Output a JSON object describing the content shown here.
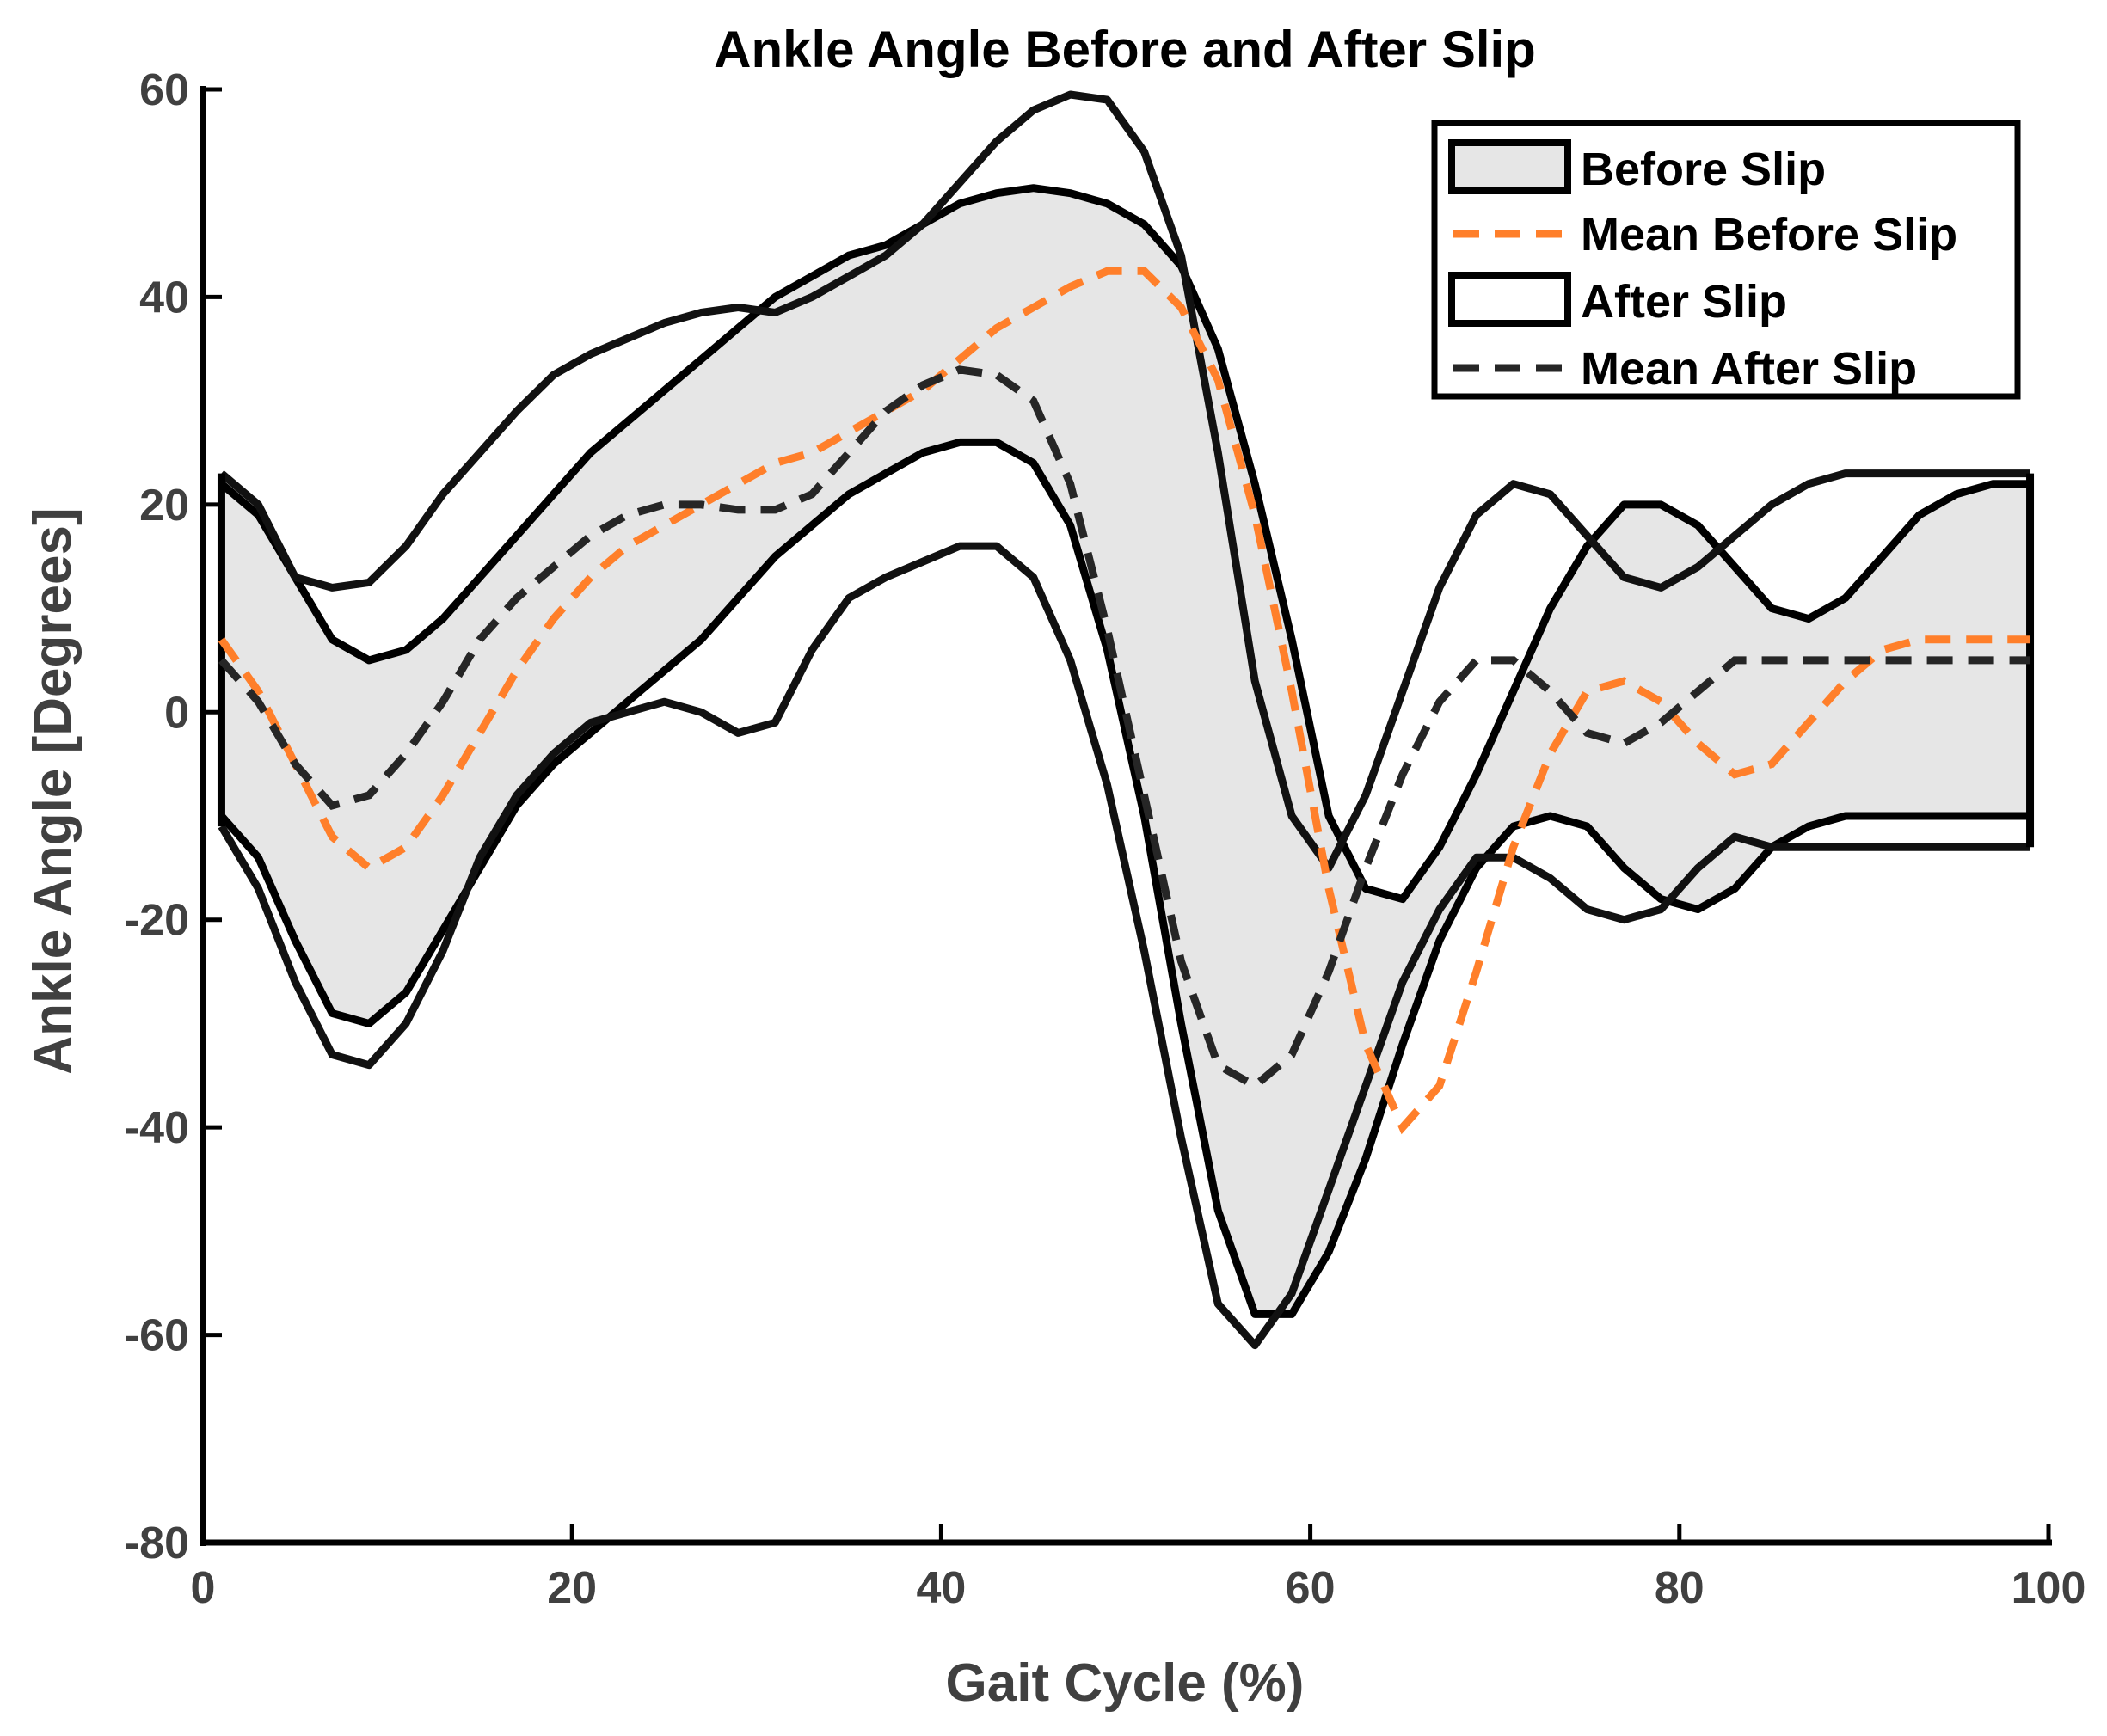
{
  "chart_data": {
    "type": "line",
    "title": "Ankle Angle Before and After Slip",
    "xlabel": "Gait Cycle (%)",
    "ylabel": "Ankle Angle [Degrees]",
    "xlim": [
      0,
      100
    ],
    "ylim": [
      -80,
      60
    ],
    "xticks": [
      0,
      20,
      40,
      60,
      80,
      100
    ],
    "yticks": [
      -80,
      -60,
      -40,
      -20,
      0,
      20,
      40,
      60
    ],
    "grid": false,
    "legend_position": "top-right",
    "legend": [
      {
        "label": "Before Slip",
        "type": "band",
        "fill": "#e6e6e6"
      },
      {
        "label": "Mean Before Slip",
        "type": "dashed",
        "color": "#ff7f2a"
      },
      {
        "label": "After Slip",
        "type": "band",
        "fill": "#ffffff"
      },
      {
        "label": "Mean After Slip",
        "type": "dashed",
        "color": "#262626"
      }
    ],
    "x": [
      1,
      3,
      5,
      7,
      9,
      11,
      13,
      15,
      17,
      19,
      21,
      23,
      25,
      27,
      29,
      31,
      33,
      35,
      37,
      39,
      41,
      43,
      45,
      47,
      49,
      51,
      53,
      55,
      57,
      59,
      61,
      63,
      65,
      67,
      69,
      71,
      73,
      75,
      77,
      79,
      81,
      83,
      85,
      87,
      89,
      91,
      93,
      95,
      97,
      99
    ],
    "series": [
      {
        "name": "Before Slip",
        "role": "band",
        "upper": [
          22,
          19,
          13,
          7,
          5,
          6,
          9,
          13,
          17,
          21,
          25,
          28,
          31,
          34,
          37,
          40,
          42,
          44,
          45,
          47,
          49,
          50,
          50.5,
          50,
          49,
          47,
          43,
          35,
          22,
          7,
          -10,
          -17,
          -18,
          -13,
          -6,
          2,
          10,
          16,
          20,
          20,
          18,
          14,
          10,
          9,
          11,
          15,
          19,
          21,
          22,
          22
        ],
        "lower": [
          -10,
          -14,
          -22,
          -29,
          -30,
          -27,
          -21,
          -15,
          -9,
          -5,
          -2,
          1,
          4,
          7,
          11,
          15,
          18,
          21,
          23,
          25,
          26,
          26,
          24,
          18,
          6,
          -10,
          -30,
          -48,
          -58,
          -58,
          -52,
          -43,
          -32,
          -22,
          -15,
          -11,
          -10,
          -11,
          -15,
          -18,
          -19,
          -17,
          -13,
          -11,
          -10,
          -10,
          -10,
          -10,
          -10,
          -10
        ]
      },
      {
        "name": "Mean Before Slip",
        "role": "mean",
        "values": [
          7,
          2,
          -5,
          -12,
          -15,
          -13,
          -8,
          -2,
          4,
          9,
          13,
          16,
          18,
          20,
          22,
          24,
          25,
          27,
          29,
          31,
          34,
          37,
          39,
          41,
          42.5,
          42.5,
          39,
          32,
          19,
          2,
          -17,
          -32,
          -40,
          -36,
          -25,
          -13,
          -4,
          2,
          3,
          1,
          -3,
          -6,
          -5,
          -1,
          3,
          6,
          7,
          7,
          7,
          7
        ]
      },
      {
        "name": "After Slip",
        "role": "band",
        "upper": [
          23,
          20,
          13,
          12,
          12.5,
          16,
          21,
          25,
          29,
          32.5,
          34.5,
          36,
          37.5,
          38.5,
          39,
          38.5,
          40,
          42,
          44,
          47,
          51,
          55,
          58,
          59.5,
          59,
          54,
          44,
          25,
          3,
          -10,
          -15,
          -8,
          2,
          12,
          19,
          22,
          21,
          17,
          13,
          12,
          14,
          17,
          20,
          22,
          23,
          23,
          23,
          23,
          23,
          23
        ],
        "lower": [
          -11,
          -17,
          -26,
          -33,
          -34,
          -30,
          -23,
          -14,
          -8,
          -4,
          -1,
          0,
          1,
          0,
          -2,
          -1,
          6,
          11,
          13,
          14.5,
          16,
          16,
          13,
          5,
          -7,
          -23,
          -41,
          -57,
          -61,
          -56,
          -46,
          -36,
          -26,
          -19,
          -14,
          -14,
          -16,
          -19,
          -20,
          -19,
          -15,
          -12,
          -13,
          -13,
          -13,
          -13,
          -13,
          -13,
          -13,
          -13
        ]
      },
      {
        "name": "Mean After Slip",
        "role": "mean",
        "values": [
          5,
          1,
          -5,
          -9,
          -8,
          -4,
          1,
          7,
          11,
          14,
          17,
          19,
          20,
          20,
          19.5,
          19.5,
          21,
          25,
          29,
          31.5,
          33,
          32.5,
          30,
          22,
          8,
          -8,
          -24,
          -34,
          -36,
          -33,
          -25,
          -15,
          -6,
          1,
          5,
          5,
          2,
          -2,
          -3,
          -1,
          2,
          5,
          5,
          5,
          5,
          5,
          5,
          5,
          5,
          5
        ]
      }
    ]
  }
}
